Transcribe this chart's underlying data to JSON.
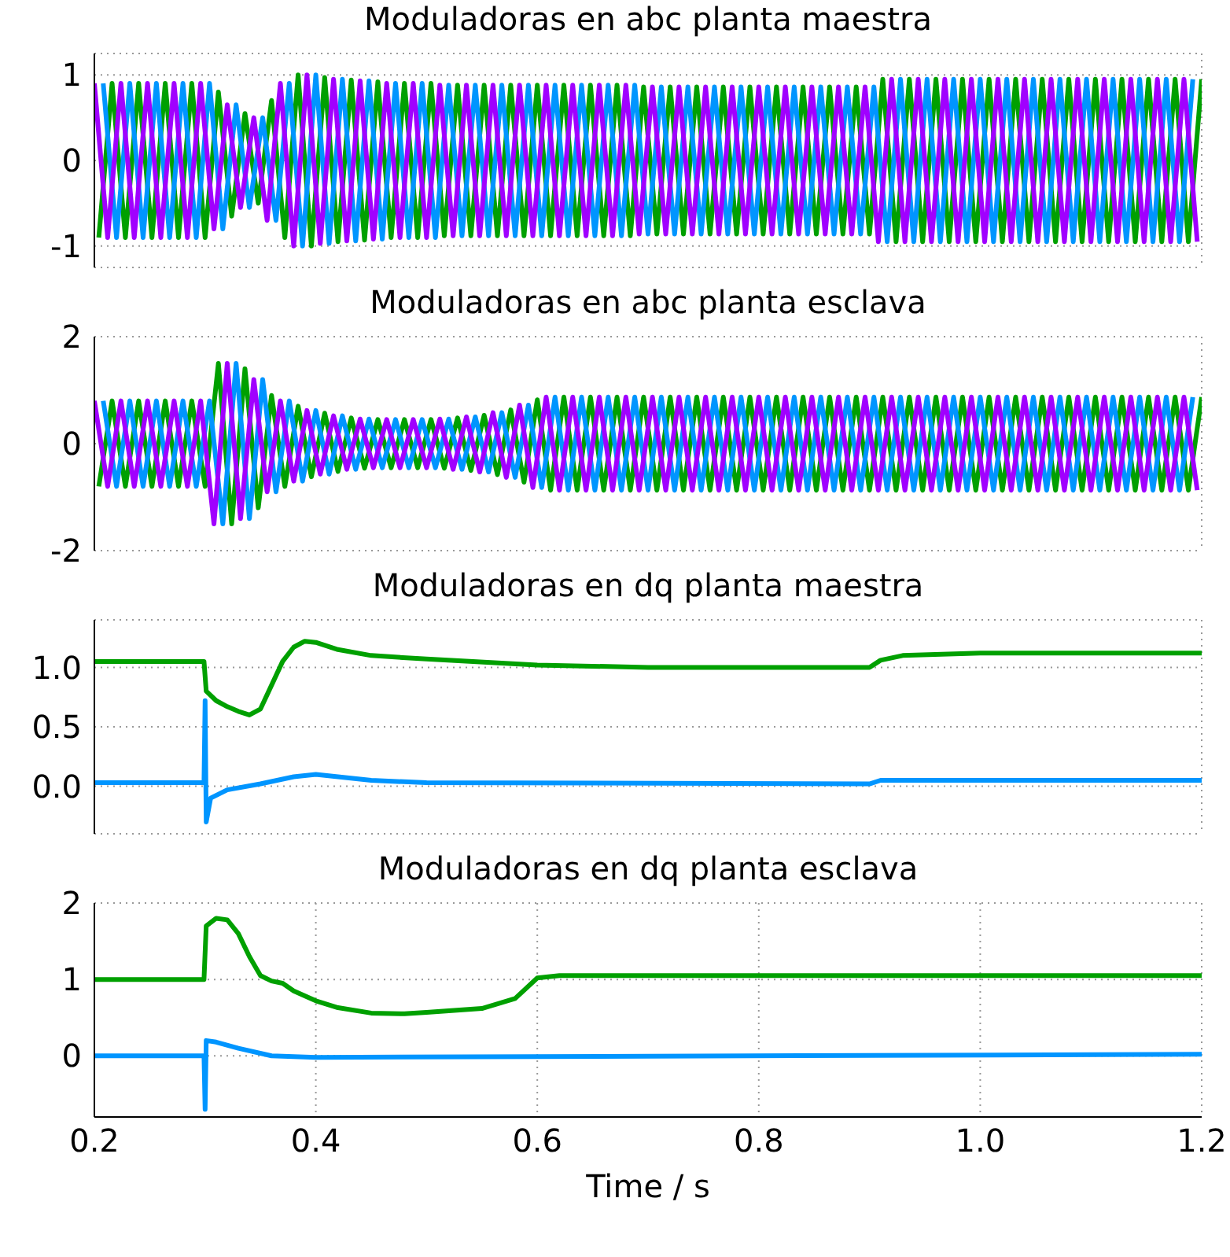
{
  "chart_data": [
    {
      "type": "line",
      "title": "Moduladoras en abc planta maestra",
      "xlim": [
        0.2,
        1.2
      ],
      "xticks": [
        0.2,
        0.4,
        0.6,
        0.8,
        1.0,
        1.2
      ],
      "ylim": [
        -1.25,
        1.25
      ],
      "yticks": [
        -1,
        0,
        1
      ],
      "grid": true,
      "tick_labels": "y",
      "series": [
        {
          "color": "#00a000",
          "x": [
            0.204,
            0.216,
            0.228,
            0.24,
            0.252,
            0.264,
            0.276,
            0.288,
            0.3,
            0.312,
            0.324,
            0.336,
            0.348,
            0.36,
            0.372,
            0.384,
            0.396,
            0.408,
            0.42,
            0.432,
            0.444,
            0.456,
            0.468,
            0.48,
            0.492,
            0.504,
            0.516,
            0.528,
            0.54,
            0.552,
            0.564,
            0.576,
            0.588,
            0.6,
            0.612,
            0.624,
            0.636,
            0.648,
            0.66,
            0.672,
            0.684,
            0.696,
            0.708,
            0.72,
            0.732,
            0.744,
            0.756,
            0.768,
            0.78,
            0.792,
            0.804,
            0.816,
            0.828,
            0.84,
            0.852,
            0.864,
            0.876,
            0.888,
            0.9,
            0.912,
            0.924,
            0.936,
            0.948,
            0.96,
            0.972,
            0.984,
            0.996,
            1.008,
            1.02,
            1.032,
            1.044,
            1.056,
            1.068,
            1.08,
            1.092,
            1.104,
            1.116,
            1.128,
            1.14,
            1.152,
            1.164,
            1.176,
            1.188,
            1.2
          ],
          "values": [
            -0.9,
            0.9,
            -0.9,
            0.9,
            -0.9,
            0.9,
            -0.9,
            0.9,
            -0.9,
            0.8,
            -0.65,
            0.55,
            -0.5,
            0.7,
            -0.9,
            1.0,
            -1.0,
            0.97,
            -0.95,
            0.94,
            -0.93,
            0.92,
            -0.9,
            0.9,
            -0.9,
            0.9,
            -0.88,
            0.88,
            -0.88,
            0.88,
            -0.88,
            0.88,
            -0.88,
            0.88,
            -0.88,
            0.88,
            -0.88,
            0.88,
            -0.88,
            0.88,
            -0.88,
            0.86,
            -0.86,
            0.86,
            -0.86,
            0.86,
            -0.86,
            0.86,
            -0.86,
            0.86,
            -0.86,
            0.86,
            -0.86,
            0.86,
            -0.86,
            0.86,
            -0.86,
            0.86,
            -0.86,
            0.95,
            -0.95,
            0.95,
            -0.95,
            0.95,
            -0.95,
            0.95,
            -0.95,
            0.95,
            -0.95,
            0.95,
            -0.95,
            0.95,
            -0.95,
            0.95,
            -0.95,
            0.95,
            -0.95,
            0.95,
            -0.95,
            0.95,
            -0.95,
            0.95,
            -0.95,
            0.95
          ]
        },
        {
          "color": "#0095ff",
          "x": [
            0.208,
            0.22,
            0.232,
            0.244,
            0.256,
            0.268,
            0.28,
            0.292,
            0.304,
            0.316,
            0.328,
            0.34,
            0.352,
            0.364,
            0.376,
            0.388,
            0.4,
            0.412,
            0.424,
            0.436,
            0.448,
            0.46,
            0.472,
            0.484,
            0.496,
            0.508,
            0.52,
            0.532,
            0.544,
            0.556,
            0.568,
            0.58,
            0.592,
            0.604,
            0.616,
            0.628,
            0.64,
            0.652,
            0.664,
            0.676,
            0.688,
            0.7,
            0.712,
            0.724,
            0.736,
            0.748,
            0.76,
            0.772,
            0.784,
            0.796,
            0.808,
            0.82,
            0.832,
            0.844,
            0.856,
            0.868,
            0.88,
            0.892,
            0.904,
            0.916,
            0.928,
            0.94,
            0.952,
            0.964,
            0.976,
            0.988,
            1.0,
            1.012,
            1.024,
            1.036,
            1.048,
            1.06,
            1.072,
            1.084,
            1.096,
            1.108,
            1.12,
            1.132,
            1.144,
            1.156,
            1.168,
            1.18,
            1.192
          ],
          "values": [
            0.9,
            -0.9,
            0.9,
            -0.9,
            0.9,
            -0.9,
            0.9,
            -0.9,
            0.9,
            -0.8,
            0.65,
            -0.55,
            0.5,
            -0.7,
            0.9,
            -1.0,
            1.0,
            -0.97,
            0.95,
            -0.94,
            0.93,
            -0.92,
            0.9,
            -0.9,
            0.9,
            -0.9,
            0.88,
            -0.88,
            0.88,
            -0.88,
            0.88,
            -0.88,
            0.88,
            -0.88,
            0.88,
            -0.88,
            0.88,
            -0.88,
            0.88,
            -0.88,
            0.88,
            -0.86,
            0.86,
            -0.86,
            0.86,
            -0.86,
            0.86,
            -0.86,
            0.86,
            -0.86,
            0.86,
            -0.86,
            0.86,
            -0.86,
            0.86,
            -0.86,
            0.86,
            -0.86,
            0.86,
            -0.95,
            0.95,
            -0.95,
            0.95,
            -0.95,
            0.95,
            -0.95,
            0.95,
            -0.95,
            0.95,
            -0.95,
            0.95,
            -0.95,
            0.95,
            -0.95,
            0.95,
            -0.95,
            0.95,
            -0.95,
            0.95,
            -0.95,
            0.95,
            -0.95,
            0.95
          ]
        },
        {
          "color": "#a000ff",
          "x": [
            0.2,
            0.212,
            0.224,
            0.236,
            0.248,
            0.26,
            0.272,
            0.284,
            0.296,
            0.308,
            0.32,
            0.332,
            0.344,
            0.356,
            0.368,
            0.38,
            0.392,
            0.404,
            0.416,
            0.428,
            0.44,
            0.452,
            0.464,
            0.476,
            0.488,
            0.5,
            0.512,
            0.524,
            0.536,
            0.548,
            0.56,
            0.572,
            0.584,
            0.596,
            0.608,
            0.62,
            0.632,
            0.644,
            0.656,
            0.668,
            0.68,
            0.692,
            0.704,
            0.716,
            0.728,
            0.74,
            0.752,
            0.764,
            0.776,
            0.788,
            0.8,
            0.812,
            0.824,
            0.836,
            0.848,
            0.86,
            0.872,
            0.884,
            0.896,
            0.908,
            0.92,
            0.932,
            0.944,
            0.956,
            0.968,
            0.98,
            0.992,
            1.004,
            1.016,
            1.028,
            1.04,
            1.052,
            1.064,
            1.076,
            1.088,
            1.1,
            1.112,
            1.124,
            1.136,
            1.148,
            1.16,
            1.172,
            1.184,
            1.196
          ],
          "values": [
            0.9,
            -0.9,
            0.9,
            -0.9,
            0.9,
            -0.9,
            0.9,
            -0.9,
            0.9,
            -0.8,
            0.65,
            -0.55,
            0.5,
            -0.7,
            0.9,
            -1.0,
            1.0,
            -0.97,
            0.95,
            -0.94,
            0.93,
            -0.92,
            0.9,
            -0.9,
            0.9,
            -0.9,
            0.88,
            -0.88,
            0.88,
            -0.88,
            0.88,
            -0.88,
            0.88,
            -0.88,
            0.88,
            -0.88,
            0.88,
            -0.88,
            0.88,
            -0.88,
            0.88,
            -0.86,
            0.86,
            -0.86,
            0.86,
            -0.86,
            0.86,
            -0.86,
            0.86,
            -0.86,
            0.86,
            -0.86,
            0.86,
            -0.86,
            0.86,
            -0.86,
            0.86,
            -0.86,
            0.86,
            -0.95,
            0.95,
            -0.95,
            0.95,
            -0.95,
            0.95,
            -0.95,
            0.95,
            -0.95,
            0.95,
            -0.95,
            0.95,
            -0.95,
            0.95,
            -0.95,
            0.95,
            -0.95,
            0.95,
            -0.95,
            0.95,
            -0.95,
            0.95,
            -0.95,
            0.95,
            -0.95
          ]
        }
      ]
    },
    {
      "type": "line",
      "title": "Moduladoras en abc planta esclava",
      "xlim": [
        0.2,
        1.2
      ],
      "xticks": [
        0.2,
        0.4,
        0.6,
        0.8,
        1.0,
        1.2
      ],
      "ylim": [
        -2,
        2
      ],
      "yticks": [
        -2,
        0,
        2
      ],
      "grid": true,
      "tick_labels": "y",
      "series": [
        {
          "color": "#00a000",
          "x": [
            0.204,
            0.216,
            0.228,
            0.24,
            0.252,
            0.264,
            0.276,
            0.288,
            0.3,
            0.312,
            0.324,
            0.336,
            0.348,
            0.36,
            0.372,
            0.384,
            0.396,
            0.408,
            0.42,
            0.432,
            0.444,
            0.456,
            0.468,
            0.48,
            0.492,
            0.504,
            0.516,
            0.528,
            0.54,
            0.552,
            0.564,
            0.576,
            0.588,
            0.6,
            0.612,
            0.624,
            0.636,
            0.648,
            0.66,
            0.672,
            0.684,
            0.696,
            0.708,
            0.72,
            0.732,
            0.744,
            0.756,
            0.768,
            0.78,
            0.792,
            0.804,
            0.816,
            0.828,
            0.84,
            0.852,
            0.864,
            0.876,
            0.888,
            0.9,
            0.912,
            0.924,
            0.936,
            0.948,
            0.96,
            0.972,
            0.984,
            0.996,
            1.008,
            1.02,
            1.032,
            1.044,
            1.056,
            1.068,
            1.08,
            1.092,
            1.104,
            1.116,
            1.128,
            1.14,
            1.152,
            1.164,
            1.176,
            1.188,
            1.2
          ],
          "values": [
            -0.8,
            0.8,
            -0.8,
            0.8,
            -0.8,
            0.8,
            -0.8,
            0.8,
            -0.8,
            1.5,
            -1.5,
            1.4,
            -1.2,
            0.9,
            -0.8,
            0.7,
            -0.62,
            0.57,
            -0.52,
            0.48,
            -0.46,
            0.45,
            -0.45,
            0.45,
            -0.45,
            0.45,
            -0.46,
            0.48,
            -0.5,
            0.53,
            -0.58,
            0.63,
            -0.72,
            0.82,
            -0.87,
            0.87,
            -0.87,
            0.87,
            -0.87,
            0.87,
            -0.87,
            0.87,
            -0.87,
            0.87,
            -0.87,
            0.87,
            -0.87,
            0.87,
            -0.87,
            0.87,
            -0.87,
            0.87,
            -0.87,
            0.87,
            -0.87,
            0.87,
            -0.87,
            0.87,
            -0.87,
            0.87,
            -0.87,
            0.87,
            -0.87,
            0.87,
            -0.87,
            0.87,
            -0.87,
            0.87,
            -0.87,
            0.87,
            -0.87,
            0.87,
            -0.87,
            0.87,
            -0.87,
            0.87,
            -0.87,
            0.87,
            -0.87,
            0.87,
            -0.87,
            0.87,
            -0.87,
            0.87
          ]
        },
        {
          "color": "#0095ff",
          "x": [
            0.208,
            0.22,
            0.232,
            0.244,
            0.256,
            0.268,
            0.28,
            0.292,
            0.304,
            0.316,
            0.328,
            0.34,
            0.352,
            0.364,
            0.376,
            0.388,
            0.4,
            0.412,
            0.424,
            0.436,
            0.448,
            0.46,
            0.472,
            0.484,
            0.496,
            0.508,
            0.52,
            0.532,
            0.544,
            0.556,
            0.568,
            0.58,
            0.592,
            0.604,
            0.616,
            0.628,
            0.64,
            0.652,
            0.664,
            0.676,
            0.688,
            0.7,
            0.712,
            0.724,
            0.736,
            0.748,
            0.76,
            0.772,
            0.784,
            0.796,
            0.808,
            0.82,
            0.832,
            0.844,
            0.856,
            0.868,
            0.88,
            0.892,
            0.904,
            0.916,
            0.928,
            0.94,
            0.952,
            0.964,
            0.976,
            0.988,
            1.0,
            1.012,
            1.024,
            1.036,
            1.048,
            1.06,
            1.072,
            1.084,
            1.096,
            1.108,
            1.12,
            1.132,
            1.144,
            1.156,
            1.168,
            1.18,
            1.192
          ],
          "values": [
            0.8,
            -0.8,
            0.8,
            -0.8,
            0.8,
            -0.8,
            0.8,
            -0.8,
            0.8,
            -1.5,
            1.5,
            -1.4,
            1.2,
            -0.9,
            0.8,
            -0.7,
            0.62,
            -0.57,
            0.52,
            -0.48,
            0.46,
            -0.45,
            0.45,
            -0.45,
            0.45,
            -0.45,
            0.46,
            -0.48,
            0.5,
            -0.53,
            0.58,
            -0.63,
            0.72,
            -0.82,
            0.87,
            -0.87,
            0.87,
            -0.87,
            0.87,
            -0.87,
            0.87,
            -0.87,
            0.87,
            -0.87,
            0.87,
            -0.87,
            0.87,
            -0.87,
            0.87,
            -0.87,
            0.87,
            -0.87,
            0.87,
            -0.87,
            0.87,
            -0.87,
            0.87,
            -0.87,
            0.87,
            -0.87,
            0.87,
            -0.87,
            0.87,
            -0.87,
            0.87,
            -0.87,
            0.87,
            -0.87,
            0.87,
            -0.87,
            0.87,
            -0.87,
            0.87,
            -0.87,
            0.87,
            -0.87,
            0.87,
            -0.87,
            0.87,
            -0.87,
            0.87,
            -0.87,
            0.87
          ]
        },
        {
          "color": "#a000ff",
          "x": [
            0.2,
            0.212,
            0.224,
            0.236,
            0.248,
            0.26,
            0.272,
            0.284,
            0.296,
            0.308,
            0.32,
            0.332,
            0.344,
            0.356,
            0.368,
            0.38,
            0.392,
            0.404,
            0.416,
            0.428,
            0.44,
            0.452,
            0.464,
            0.476,
            0.488,
            0.5,
            0.512,
            0.524,
            0.536,
            0.548,
            0.56,
            0.572,
            0.584,
            0.596,
            0.608,
            0.62,
            0.632,
            0.644,
            0.656,
            0.668,
            0.68,
            0.692,
            0.704,
            0.716,
            0.728,
            0.74,
            0.752,
            0.764,
            0.776,
            0.788,
            0.8,
            0.812,
            0.824,
            0.836,
            0.848,
            0.86,
            0.872,
            0.884,
            0.896,
            0.908,
            0.92,
            0.932,
            0.944,
            0.956,
            0.968,
            0.98,
            0.992,
            1.004,
            1.016,
            1.028,
            1.04,
            1.052,
            1.064,
            1.076,
            1.088,
            1.1,
            1.112,
            1.124,
            1.136,
            1.148,
            1.16,
            1.172,
            1.184,
            1.196
          ],
          "values": [
            0.8,
            -0.8,
            0.8,
            -0.8,
            0.8,
            -0.8,
            0.8,
            -0.8,
            0.8,
            -1.5,
            1.5,
            -1.4,
            1.2,
            -0.9,
            0.8,
            -0.7,
            0.62,
            -0.57,
            0.52,
            -0.48,
            0.46,
            -0.45,
            0.45,
            -0.45,
            0.45,
            -0.45,
            0.46,
            -0.48,
            0.5,
            -0.53,
            0.58,
            -0.63,
            0.72,
            -0.82,
            0.87,
            -0.87,
            0.87,
            -0.87,
            0.87,
            -0.87,
            0.87,
            -0.87,
            0.87,
            -0.87,
            0.87,
            -0.87,
            0.87,
            -0.87,
            0.87,
            -0.87,
            0.87,
            -0.87,
            0.87,
            -0.87,
            0.87,
            -0.87,
            0.87,
            -0.87,
            0.87,
            -0.87,
            0.87,
            -0.87,
            0.87,
            -0.87,
            0.87,
            -0.87,
            0.87,
            -0.87,
            0.87,
            -0.87,
            0.87,
            -0.87,
            0.87,
            -0.87,
            0.87,
            -0.87,
            0.87,
            -0.87,
            0.87,
            -0.87,
            0.87,
            -0.87,
            0.87,
            -0.87
          ]
        }
      ]
    },
    {
      "type": "line",
      "title": "Moduladoras en dq planta maestra",
      "xlim": [
        0.2,
        1.2
      ],
      "xticks": [
        0.2,
        0.4,
        0.6,
        0.8,
        1.0,
        1.2
      ],
      "ylim": [
        -0.4,
        1.4
      ],
      "yticks": [
        {
          "value": 0,
          "label": "0.0"
        },
        {
          "value": 0.5,
          "label": "0.5"
        },
        {
          "value": 1,
          "label": "1.0"
        }
      ],
      "grid": true,
      "tick_labels": "y",
      "series": [
        {
          "color": "#00a000",
          "x": [
            0.2,
            0.299,
            0.301,
            0.31,
            0.32,
            0.33,
            0.34,
            0.35,
            0.36,
            0.37,
            0.38,
            0.39,
            0.4,
            0.42,
            0.45,
            0.5,
            0.6,
            0.7,
            0.8,
            0.9,
            0.91,
            0.93,
            1.0,
            1.1,
            1.2
          ],
          "values": [
            1.05,
            1.05,
            0.8,
            0.72,
            0.67,
            0.63,
            0.6,
            0.65,
            0.85,
            1.05,
            1.17,
            1.22,
            1.21,
            1.15,
            1.1,
            1.07,
            1.02,
            1.0,
            1.0,
            1.0,
            1.06,
            1.1,
            1.12,
            1.12,
            1.12
          ]
        },
        {
          "color": "#0095ff",
          "x": [
            0.2,
            0.299,
            0.3,
            0.301,
            0.305,
            0.32,
            0.35,
            0.38,
            0.4,
            0.45,
            0.5,
            0.9,
            0.91,
            1.2
          ],
          "values": [
            0.03,
            0.03,
            0.72,
            -0.3,
            -0.1,
            -0.03,
            0.02,
            0.08,
            0.1,
            0.05,
            0.03,
            0.02,
            0.05,
            0.05
          ]
        }
      ]
    },
    {
      "type": "line",
      "title": "Moduladoras en dq planta esclava",
      "xlabel": "Time / s",
      "xlim": [
        0.2,
        1.2
      ],
      "xticks": [
        0.2,
        0.4,
        0.6,
        0.8,
        {
          "value": 1.0,
          "label": "1.0"
        },
        1.2
      ],
      "ylim": [
        -0.8,
        2
      ],
      "yticks": [
        0,
        1,
        2
      ],
      "grid": true,
      "series": [
        {
          "color": "#00a000",
          "x": [
            0.2,
            0.299,
            0.301,
            0.31,
            0.32,
            0.33,
            0.34,
            0.35,
            0.36,
            0.37,
            0.38,
            0.4,
            0.42,
            0.45,
            0.48,
            0.5,
            0.55,
            0.58,
            0.6,
            0.62,
            1.2
          ],
          "values": [
            1.0,
            1.0,
            1.7,
            1.8,
            1.78,
            1.6,
            1.3,
            1.05,
            0.98,
            0.95,
            0.85,
            0.72,
            0.63,
            0.56,
            0.55,
            0.57,
            0.62,
            0.75,
            1.02,
            1.05,
            1.05
          ]
        },
        {
          "color": "#0095ff",
          "x": [
            0.2,
            0.299,
            0.3,
            0.301,
            0.31,
            0.33,
            0.36,
            0.4,
            1.2
          ],
          "values": [
            0,
            0,
            -0.7,
            0.2,
            0.18,
            0.1,
            0,
            -0.02,
            0.02
          ]
        }
      ]
    }
  ]
}
